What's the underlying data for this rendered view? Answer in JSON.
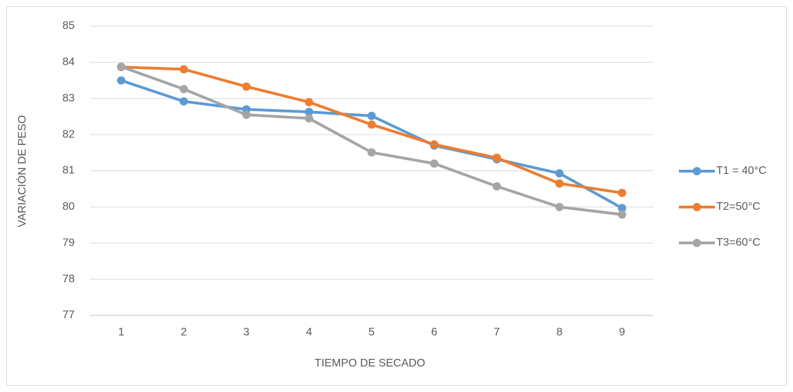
{
  "chart_data": {
    "type": "line",
    "categories": [
      "1",
      "2",
      "3",
      "4",
      "5",
      "6",
      "7",
      "8",
      "9"
    ],
    "series": [
      {
        "name": "T1 = 40°C",
        "color": "#5b9bd5",
        "values": [
          83.5,
          82.92,
          82.7,
          82.63,
          82.52,
          81.7,
          81.32,
          80.93,
          79.97
        ]
      },
      {
        "name": "T2=50°C",
        "color": "#ed7d31",
        "values": [
          83.87,
          83.81,
          83.33,
          82.9,
          82.28,
          81.73,
          81.36,
          80.65,
          80.39
        ]
      },
      {
        "name": "T3=60°C",
        "color": "#a5a5a5",
        "values": [
          83.88,
          83.26,
          82.55,
          82.45,
          81.51,
          81.2,
          80.57,
          80.0,
          79.79
        ]
      }
    ],
    "xlabel": "TIEMPO DE SECADO",
    "ylabel": "VARIACIÓN DE PESO",
    "ylim": [
      77,
      85
    ],
    "yticks": [
      77,
      78,
      79,
      80,
      81,
      82,
      83,
      84,
      85
    ],
    "grid": true,
    "legend": "right"
  }
}
